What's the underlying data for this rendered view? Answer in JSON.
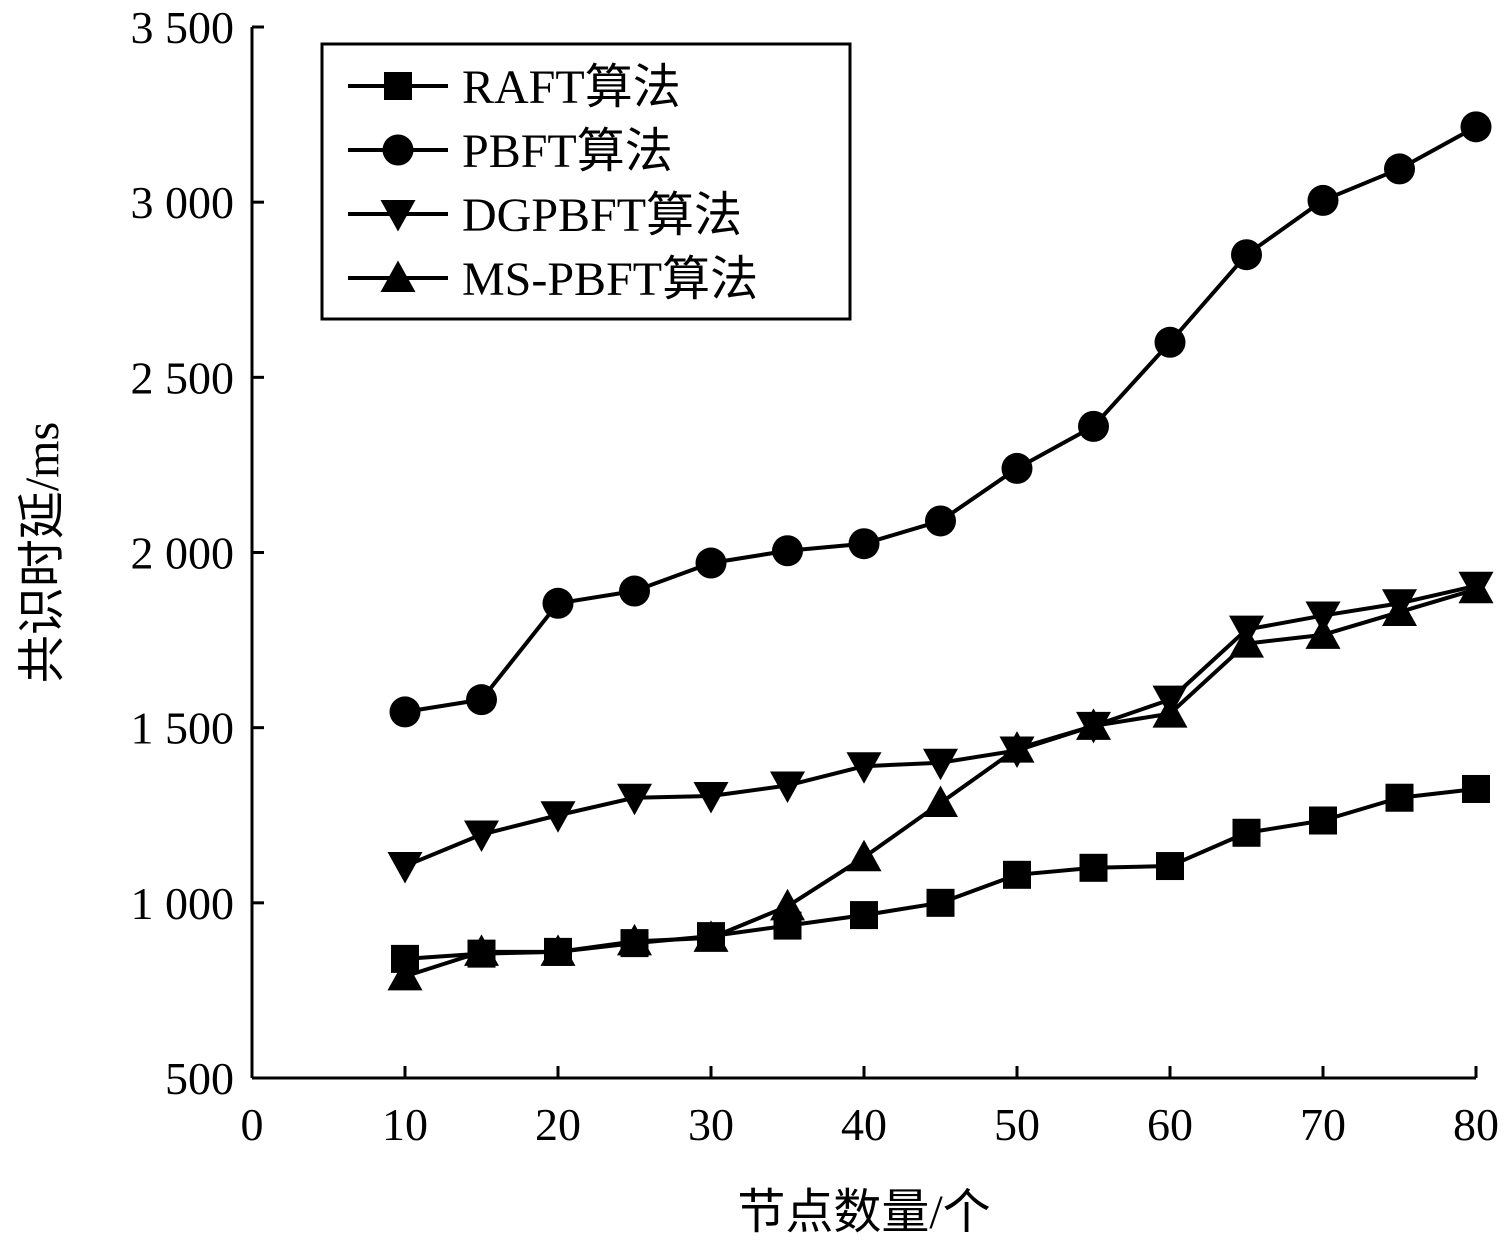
{
  "chart_data": {
    "type": "line",
    "xlabel": "节点数量/个",
    "ylabel": "共识时延/ms",
    "xlim": [
      0,
      80
    ],
    "ylim": [
      500,
      3500
    ],
    "xticks": [
      0,
      10,
      20,
      30,
      40,
      50,
      60,
      70,
      80
    ],
    "xtick_labels": [
      "0",
      "10",
      "20",
      "30",
      "40",
      "50",
      "60",
      "70",
      "80"
    ],
    "yticks": [
      500,
      1000,
      1500,
      2000,
      2500,
      3000,
      3500
    ],
    "ytick_labels": [
      "500",
      "1 000",
      "1 500",
      "2 000",
      "2 500",
      "3 000",
      "3 500"
    ],
    "grid": false,
    "legend_position": "top-left",
    "x": [
      10,
      15,
      20,
      25,
      30,
      35,
      40,
      45,
      50,
      55,
      60,
      65,
      70,
      75,
      80
    ],
    "series": [
      {
        "name": "RAFT算法",
        "marker": "square",
        "values": [
          840,
          855,
          860,
          885,
          905,
          935,
          965,
          1000,
          1080,
          1100,
          1105,
          1200,
          1235,
          1300,
          1325
        ]
      },
      {
        "name": "PBFT算法",
        "marker": "circle",
        "values": [
          1545,
          1580,
          1855,
          1890,
          1970,
          2005,
          2025,
          2090,
          2240,
          2360,
          2600,
          2850,
          3005,
          3095,
          3215
        ]
      },
      {
        "name": "DGPBFT算法",
        "marker": "triangle-down",
        "values": [
          1105,
          1195,
          1250,
          1300,
          1305,
          1335,
          1390,
          1400,
          1435,
          1505,
          1580,
          1780,
          1820,
          1855,
          1905
        ]
      },
      {
        "name": "MS-PBFT算法",
        "marker": "triangle-up",
        "values": [
          790,
          860,
          860,
          890,
          900,
          990,
          1130,
          1285,
          1440,
          1505,
          1540,
          1740,
          1765,
          1830,
          1895
        ]
      }
    ]
  }
}
